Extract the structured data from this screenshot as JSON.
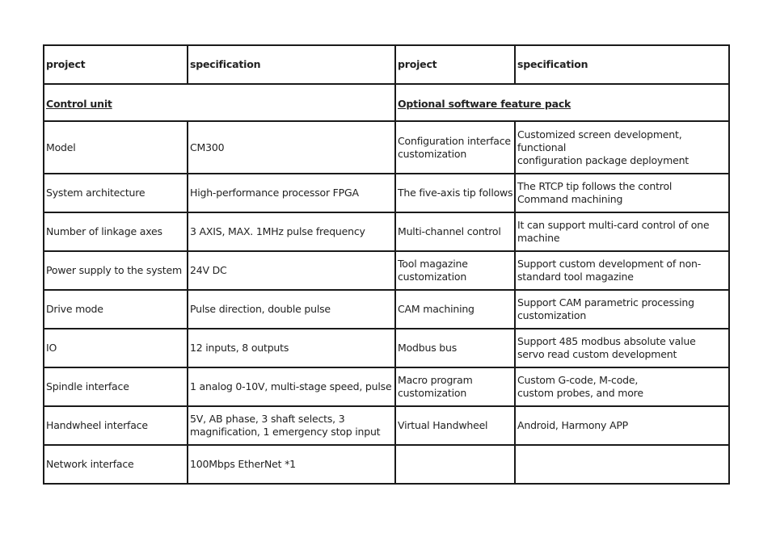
{
  "headers": [
    "project",
    "specification",
    "project",
    "specification"
  ],
  "sections": [
    "Control unit",
    "Optional software feature pack"
  ],
  "rows": [
    [
      "Model",
      "CM300",
      "Configuration interface\ncustomization",
      "Customized screen development, functional\nconfiguration package deployment"
    ],
    [
      "System architecture",
      "High-performance processor FPGA",
      "The five-axis tip follows",
      "The RTCP tip follows the control\nCommand machining"
    ],
    [
      "Number of linkage axes",
      "3 AXIS, MAX. 1MHz pulse frequency",
      "Multi-channel control",
      "It can support multi-card control of one\nmachine"
    ],
    [
      "Power supply to the system",
      "24V DC",
      "Tool magazine\ncustomization",
      "Support custom development of non-\nstandard tool magazine"
    ],
    [
      "Drive mode",
      "Pulse direction, double pulse",
      "CAM machining",
      "Support CAM parametric processing\ncustomization"
    ],
    [
      "IO",
      " 12 inputs, 8 outputs",
      "Modbus bus",
      "Support 485 modbus absolute value\nservo read custom development"
    ],
    [
      "Spindle interface",
      "1 analog 0-10V, multi-stage speed, pulse",
      "Macro program\ncustomization",
      "Custom G-code, M-code,\ncustom probes, and more"
    ],
    [
      "Handwheel interface",
      "5V, AB phase, 3 shaft selects, 3\nmagnification, 1 emergency stop input",
      "Virtual Handwheel",
      "Android, Harmony APP"
    ],
    [
      "Network interface",
      "100Mbps EtherNet *1",
      "",
      ""
    ]
  ]
}
